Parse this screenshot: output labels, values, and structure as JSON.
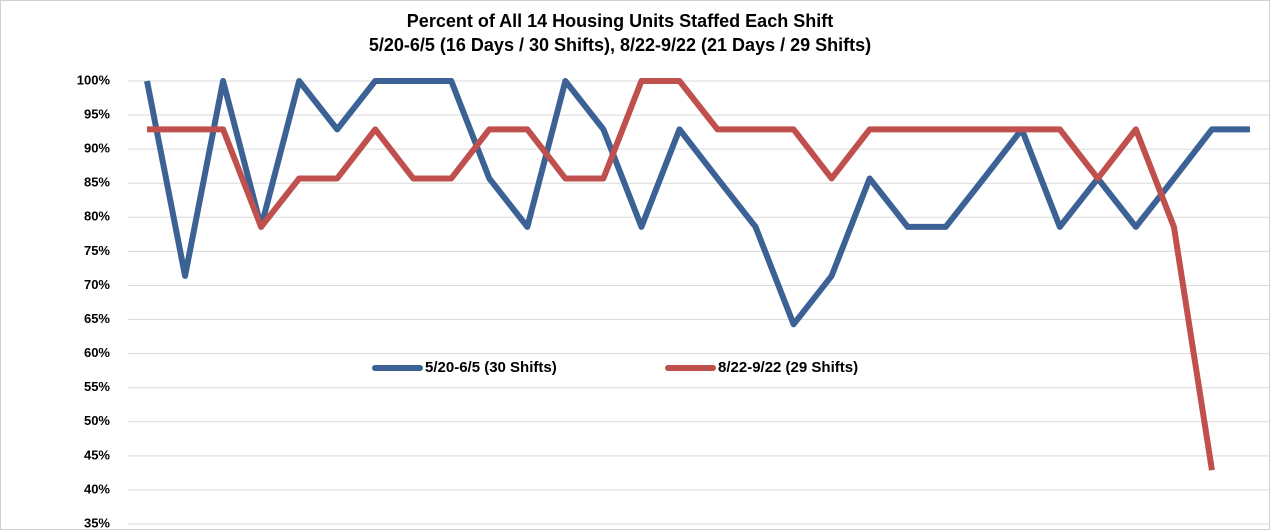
{
  "chart_data": {
    "type": "line",
    "title": "Percent of All 14 Housing Units Staffed Each Shift",
    "subtitle": "5/20-6/5 (16 Days / 30 Shifts), 8/22-9/22 (21 Days / 29 Shifts)",
    "categories": [
      null,
      null,
      null,
      null,
      null,
      null,
      null,
      null,
      null,
      null,
      null,
      null,
      null,
      null,
      null,
      null,
      null,
      null,
      null,
      null,
      null,
      null,
      null,
      null,
      null,
      null,
      null,
      null,
      null,
      null
    ],
    "series": [
      {
        "name": "5/20-6/5 (30 Shifts)",
        "color": "#3c6295",
        "values": [
          100,
          71.4,
          100,
          78.6,
          100,
          92.9,
          100,
          100,
          100,
          85.7,
          78.6,
          100,
          92.9,
          78.6,
          92.9,
          85.7,
          78.6,
          64.3,
          71.4,
          85.7,
          78.6,
          78.6,
          85.7,
          92.9,
          78.6,
          85.7,
          78.6,
          85.7,
          92.9,
          92.9
        ]
      },
      {
        "name": "8/22-9/22 (29 Shifts)",
        "color": "#c0504d",
        "values": [
          92.9,
          92.9,
          92.9,
          78.6,
          85.7,
          85.7,
          92.9,
          85.7,
          85.7,
          92.9,
          92.9,
          85.7,
          85.7,
          100,
          100,
          92.9,
          92.9,
          92.9,
          85.7,
          92.9,
          92.9,
          92.9,
          92.9,
          92.9,
          92.9,
          85.7,
          92.9,
          78.6,
          42.9,
          null
        ]
      }
    ],
    "ylim": [
      35,
      100
    ],
    "yticks": [
      {
        "value": 35,
        "label": "35%"
      },
      {
        "value": 40,
        "label": "40%"
      },
      {
        "value": 45,
        "label": "45%"
      },
      {
        "value": 50,
        "label": "50%"
      },
      {
        "value": 55,
        "label": "55%"
      },
      {
        "value": 60,
        "label": "60%"
      },
      {
        "value": 65,
        "label": "65%"
      },
      {
        "value": 70,
        "label": "70%"
      },
      {
        "value": 75,
        "label": "75%"
      },
      {
        "value": 80,
        "label": "80%"
      },
      {
        "value": 85,
        "label": "85%"
      },
      {
        "value": 90,
        "label": "90%"
      },
      {
        "value": 95,
        "label": "95%"
      },
      {
        "value": 100,
        "label": "100%"
      }
    ],
    "grid": true,
    "legend": "center"
  }
}
